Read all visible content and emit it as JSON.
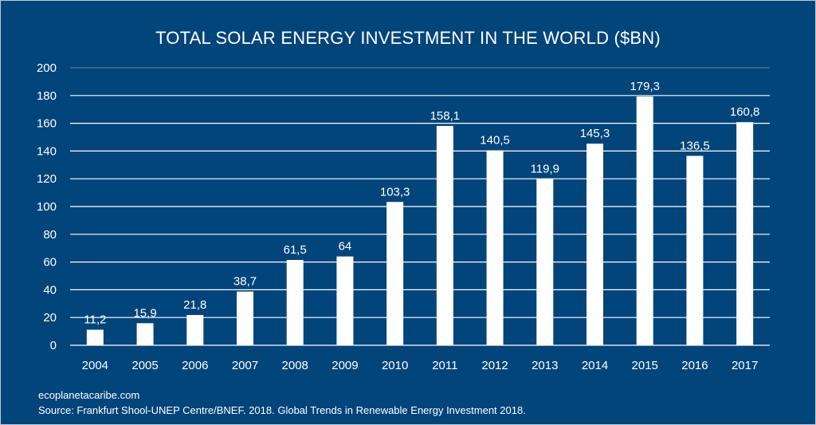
{
  "chart_data": {
    "type": "bar",
    "title": "TOTAL SOLAR ENERGY INVESTMENT IN THE WORLD ($BN)",
    "categories": [
      "2004",
      "2005",
      "2006",
      "2007",
      "2008",
      "2009",
      "2010",
      "2011",
      "2012",
      "2013",
      "2014",
      "2015",
      "2016",
      "2017"
    ],
    "values": [
      11.2,
      15.9,
      21.8,
      38.7,
      61.5,
      64,
      103.3,
      158.1,
      140.5,
      119.9,
      145.3,
      179.3,
      136.5,
      160.8
    ],
    "data_labels": [
      "11,2",
      "15,9",
      "21,8",
      "38,7",
      "61,5",
      "64",
      "103,3",
      "158,1",
      "140,5",
      "119,9",
      "145,3",
      "179,3",
      "136,5",
      "160,8"
    ],
    "ylim": [
      0,
      200
    ],
    "yticks": [
      0,
      20,
      40,
      60,
      80,
      100,
      120,
      140,
      160,
      180,
      200
    ],
    "grid": true,
    "xlabel": "",
    "ylabel": "",
    "colors": {
      "background": "#02457a",
      "bar": "#ffffff",
      "text": "#ffffff"
    }
  },
  "footer": {
    "website": "ecoplanetacaribe.com",
    "source": "Source: Frankfurt Shool-UNEP Centre/BNEF. 2018. Global Trends in Renewable Energy Investment 2018."
  }
}
